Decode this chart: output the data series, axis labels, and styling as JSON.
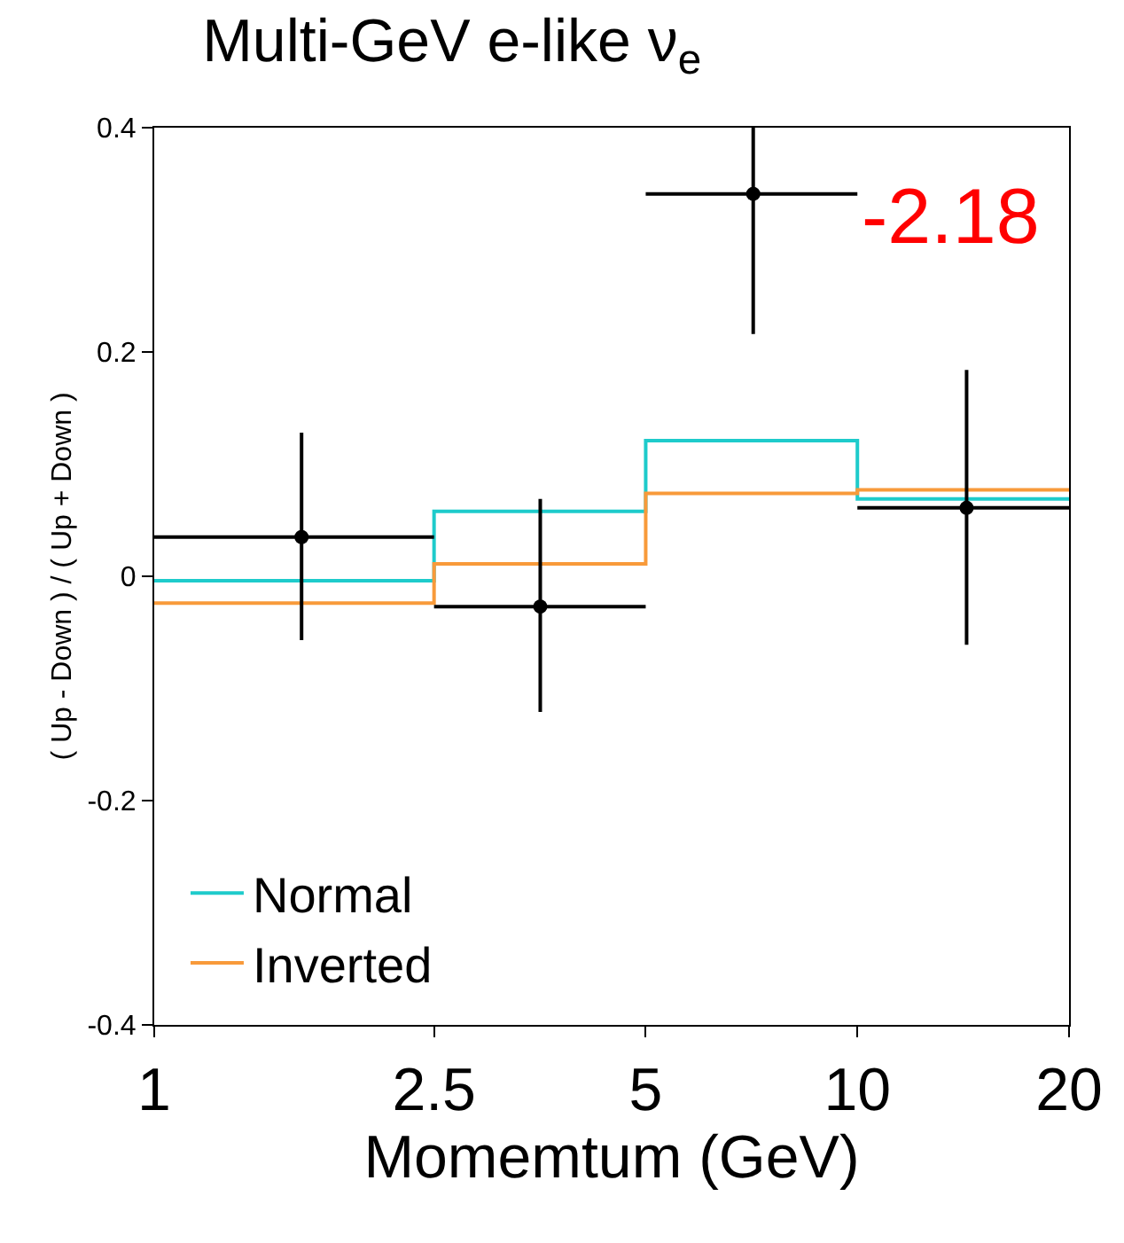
{
  "chart_data": {
    "type": "step",
    "title": "Multi-GeV e-like ν$_{e}$",
    "xlabel": "Momemtum (GeV)",
    "ylabel": "( Up - Down ) / ( Up + Down )",
    "log": "x",
    "xlim": [
      1,
      20
    ],
    "xticks": [
      1,
      2.5,
      5,
      10,
      20
    ],
    "ylim": [
      -0.4,
      0.4
    ],
    "yticks": [
      -0.4,
      -0.2,
      0,
      0.2,
      0.4
    ],
    "legend": "bottom left",
    "annotations": [
      "-2.18"
    ],
    "series": [
      {
        "name": "Normal",
        "color": "#1ecbcb",
        "x": [
          1,
          2.5,
          5,
          10,
          20
        ],
        "values": [
          -0.004,
          0.058,
          0.121,
          0.069,
          0.069
        ]
      },
      {
        "name": "Inverted",
        "color": "#f89a3a",
        "x": [
          1,
          2.5,
          5,
          10,
          20
        ],
        "values": [
          -0.024,
          0.011,
          0.074,
          0.077,
          0.077
        ]
      },
      {
        "color": "#000000",
        "type": "scatter",
        "marker": "circle",
        "x": [
          1.62,
          3.54,
          7.11,
          14.3
        ],
        "values": [
          0.035,
          -0.027,
          0.341,
          0.061
        ],
        "errors": [
          [
            -0.057,
            0.128
          ],
          [
            -0.121,
            0.069
          ],
          [
            0.216,
            0.4
          ],
          [
            -0.061,
            0.184
          ]
        ],
        "xerrors": [
          [
            1,
            2.5
          ],
          [
            2.5,
            5
          ],
          [
            5,
            10
          ],
          [
            10,
            20
          ]
        ]
      }
    ]
  }
}
